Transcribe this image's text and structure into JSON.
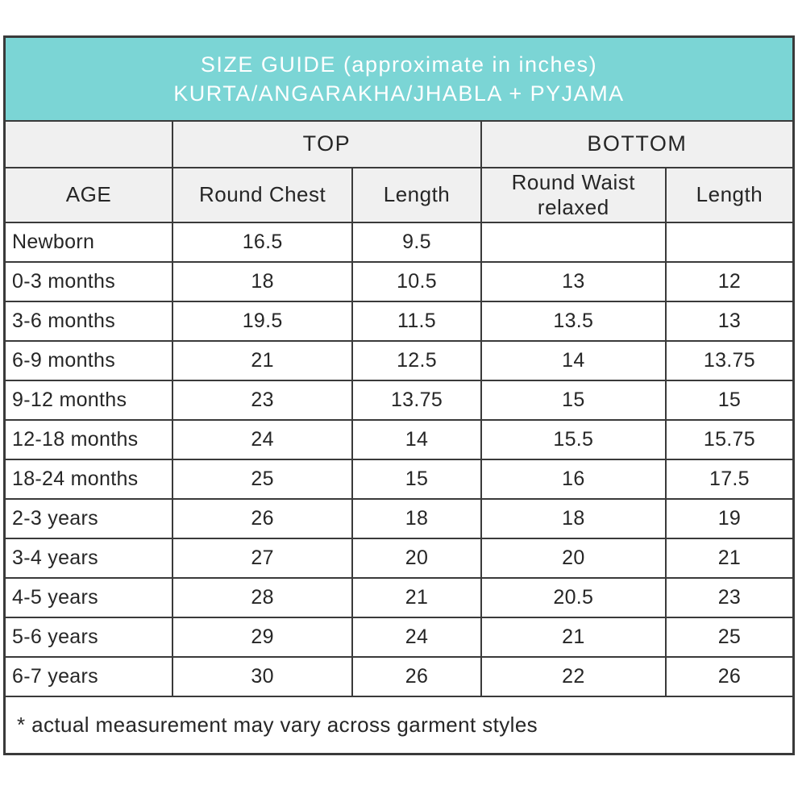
{
  "table": {
    "title_line1": "SIZE GUIDE (approximate in inches)",
    "title_line2": "KURTA/ANGARAKHA/JHABLA + PYJAMA",
    "group_headers": {
      "top": "TOP",
      "bottom": "BOTTOM"
    },
    "column_headers": {
      "age": "AGE",
      "round_chest": "Round Chest",
      "top_length": "Length",
      "round_waist": "Round Waist relaxed",
      "bottom_length": "Length"
    },
    "rows": [
      {
        "age": "Newborn",
        "round_chest": "16.5",
        "top_length": "9.5",
        "round_waist": "",
        "bottom_length": ""
      },
      {
        "age": "0-3 months",
        "round_chest": "18",
        "top_length": "10.5",
        "round_waist": "13",
        "bottom_length": "12"
      },
      {
        "age": "3-6 months",
        "round_chest": "19.5",
        "top_length": "11.5",
        "round_waist": "13.5",
        "bottom_length": "13"
      },
      {
        "age": "6-9 months",
        "round_chest": "21",
        "top_length": "12.5",
        "round_waist": "14",
        "bottom_length": "13.75"
      },
      {
        "age": "9-12 months",
        "round_chest": "23",
        "top_length": "13.75",
        "round_waist": "15",
        "bottom_length": "15"
      },
      {
        "age": "12-18 months",
        "round_chest": "24",
        "top_length": "14",
        "round_waist": "15.5",
        "bottom_length": "15.75"
      },
      {
        "age": "18-24 months",
        "round_chest": "25",
        "top_length": "15",
        "round_waist": "16",
        "bottom_length": "17.5"
      },
      {
        "age": "2-3 years",
        "round_chest": "26",
        "top_length": "18",
        "round_waist": "18",
        "bottom_length": "19"
      },
      {
        "age": "3-4 years",
        "round_chest": "27",
        "top_length": "20",
        "round_waist": "20",
        "bottom_length": "21"
      },
      {
        "age": "4-5 years",
        "round_chest": "28",
        "top_length": "21",
        "round_waist": "20.5",
        "bottom_length": "23"
      },
      {
        "age": "5-6 years",
        "round_chest": "29",
        "top_length": "24",
        "round_waist": "21",
        "bottom_length": "25"
      },
      {
        "age": "6-7 years",
        "round_chest": "30",
        "top_length": "26",
        "round_waist": "22",
        "bottom_length": "26"
      }
    ],
    "footnote": "* actual measurement may vary across garment styles",
    "colors": {
      "title_bg": "#7bd5d5",
      "title_text": "#ffffff",
      "subheader_bg": "#f0f0f0",
      "border": "#3a3a3a",
      "text": "#262626"
    }
  }
}
